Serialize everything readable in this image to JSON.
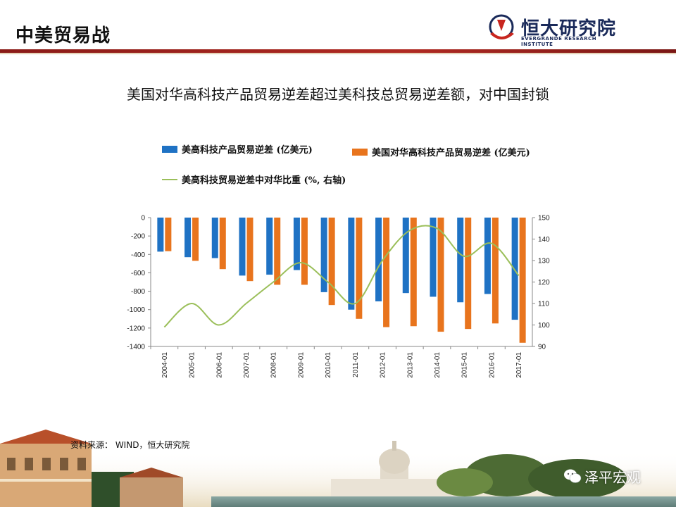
{
  "header": {
    "title": "中美贸易战",
    "logo_name": "恒大研究院",
    "logo_en": "EVERGRANDE RESEARCH INSTITUTE"
  },
  "colors": {
    "accent_red": "#9b1e19",
    "series_blue": "#1f72c4",
    "series_orange": "#e8741d",
    "series_green": "#9bbf5a"
  },
  "chart_heading": "美国对华高科技产品贸易逆差超过美科技总贸易逆差额，对中国封锁",
  "chart_data": {
    "type": "bar",
    "title": "",
    "categories": [
      "2004-01",
      "2005-01",
      "2006-01",
      "2007-01",
      "2008-01",
      "2009-01",
      "2010-01",
      "2011-01",
      "2012-01",
      "2013-01",
      "2014-01",
      "2015-01",
      "2016-01",
      "2017-01"
    ],
    "ylim_left": [
      -1400,
      0
    ],
    "yticks_left": [
      "0",
      "-200",
      "-400",
      "-600",
      "-800",
      "-1000",
      "-1200",
      "-1400"
    ],
    "ylim_right": [
      90,
      150
    ],
    "yticks_right": [
      "150",
      "140",
      "130",
      "120",
      "110",
      "100",
      "90"
    ],
    "grid": false,
    "legend_position": "top",
    "series": [
      {
        "name": "美高科技产品贸易逆差 (亿美元)",
        "type": "bar",
        "axis": "left",
        "values": [
          -370,
          -430,
          -440,
          -630,
          -620,
          -570,
          -810,
          -1000,
          -910,
          -820,
          -860,
          -920,
          -830,
          -1110
        ]
      },
      {
        "name": "美国对华高科技产品贸易逆差 (亿美元)",
        "type": "bar",
        "axis": "left",
        "values": [
          -365,
          -470,
          -560,
          -690,
          -730,
          -730,
          -950,
          -1100,
          -1190,
          -1180,
          -1240,
          -1210,
          -1150,
          -1360
        ]
      },
      {
        "name": "美高科技贸易逆差中对华比重 (%, 右轴)",
        "type": "line",
        "axis": "right",
        "values": [
          99,
          110,
          100,
          110,
          120,
          129,
          120,
          110,
          130,
          144,
          145,
          132,
          138,
          123
        ]
      }
    ]
  },
  "source_note": "资料来源： WIND，恒大研究院",
  "watermark": "泽平宏观"
}
